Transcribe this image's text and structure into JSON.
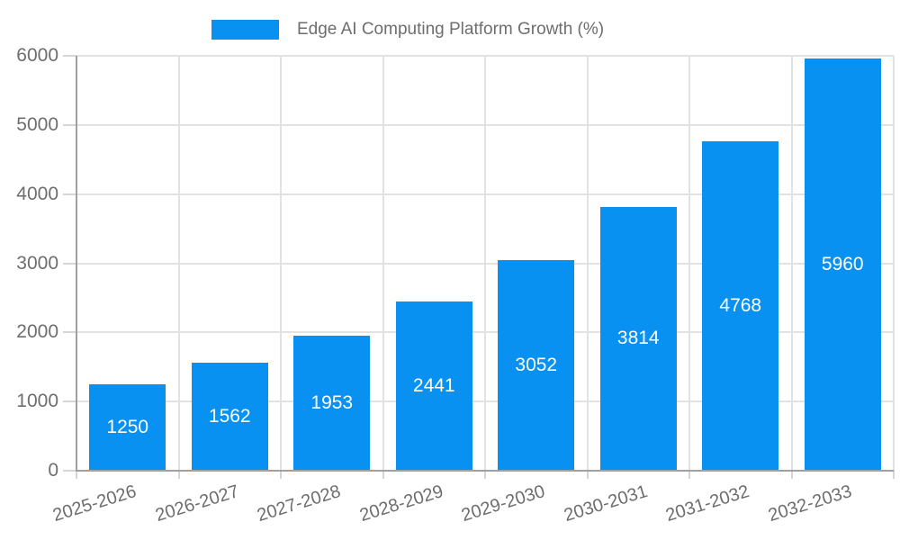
{
  "chart_data": {
    "type": "bar",
    "title": "Edge AI Computing Platform Growth (%)",
    "categories": [
      "2025-2026",
      "2026-2027",
      "2027-2028",
      "2028-2029",
      "2029-2030",
      "2030-2031",
      "2031-2032",
      "2032-2033"
    ],
    "values": [
      1250,
      1562,
      1953,
      2441,
      3052,
      3814,
      4768,
      5960
    ],
    "xlabel": "",
    "ylabel": "",
    "ylim": [
      0,
      6000
    ],
    "yticks": [
      0,
      1000,
      2000,
      3000,
      4000,
      5000,
      6000
    ],
    "grid": true,
    "legend_position": "top-center",
    "bar_labels_inside": true,
    "x_label_rotation_deg": -17,
    "colors": {
      "bar": "#0991f2",
      "bar_label": "#ffffff",
      "grid": "#e2e2e2",
      "tick": "#d6d6d6",
      "axis": "#a0a0a0",
      "text": "#6e6e6e",
      "background": "#ffffff"
    }
  }
}
